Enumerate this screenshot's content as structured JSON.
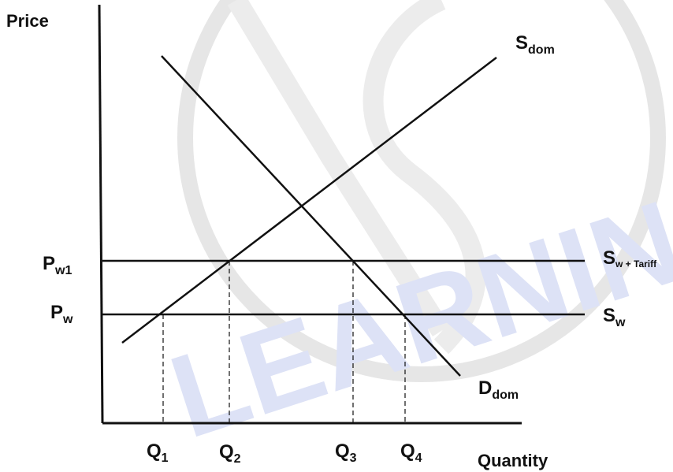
{
  "axes": {
    "y_label": "Price",
    "x_label": "Quantity"
  },
  "price_levels": [
    {
      "main": "P",
      "sub": "w1"
    },
    {
      "main": "P",
      "sub": "w"
    }
  ],
  "quantity_labels": [
    {
      "main": "Q",
      "sub": "1"
    },
    {
      "main": "Q",
      "sub": "2"
    },
    {
      "main": "Q",
      "sub": "3"
    },
    {
      "main": "Q",
      "sub": "4"
    }
  ],
  "curves": {
    "supply_domestic": {
      "main": "S",
      "sub": "dom"
    },
    "demand_domestic": {
      "main": "D",
      "sub": "dom"
    },
    "world_supply_tariff": {
      "main": "S",
      "sub": "w + Tariff"
    },
    "world_supply": {
      "main": "S",
      "sub": "w"
    }
  },
  "watermark": {
    "text": "LEARNING",
    "color": "#dde2f6",
    "circle_color": "#e6e6e6"
  },
  "colors": {
    "line": "#111111"
  }
}
